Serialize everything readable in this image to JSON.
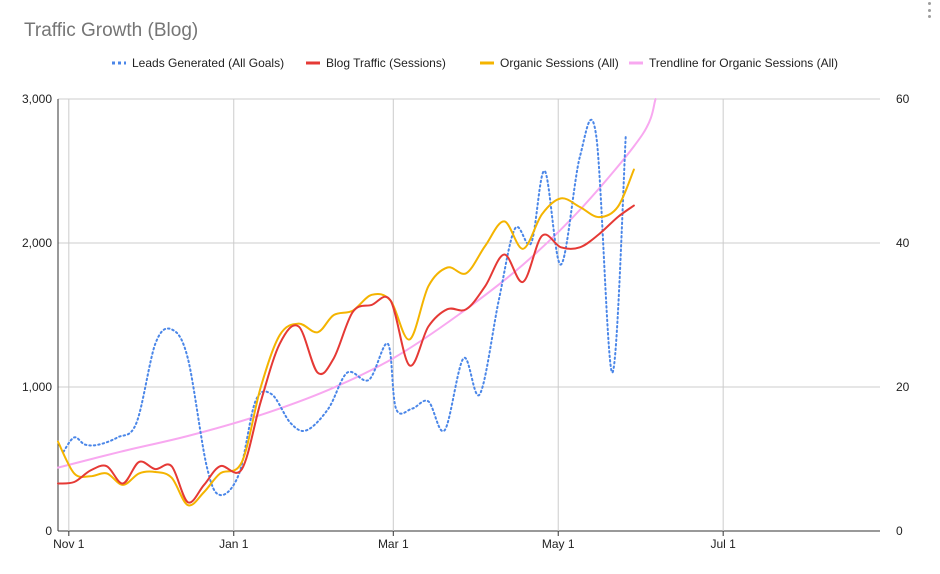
{
  "header": {
    "title": "Traffic Growth (Blog)"
  },
  "menu": {
    "icon": "more-vert-icon"
  },
  "chart_data": {
    "type": "line",
    "title": "Traffic Growth (Blog)",
    "x_ticks": [
      "Nov 1",
      "Jan 1",
      "Mar 1",
      "May 1",
      "Jul 1"
    ],
    "y_ticks": [
      "0",
      "1,000",
      "2,000",
      "3,000"
    ],
    "y2_ticks": [
      "0",
      "20",
      "40",
      "60"
    ],
    "ylim": [
      0,
      3000
    ],
    "y2lim": [
      0,
      60
    ],
    "xlim": [
      "2020-10-28",
      "2021-08-28"
    ],
    "grid": true,
    "legend_position": "top",
    "series": [
      {
        "name": "Leads Generated (All Goals)",
        "axis": "right",
        "style": "dotted",
        "color": "#4a86e8",
        "x": [
          "2020-10-30",
          "2020-11-03",
          "2020-11-07",
          "2020-11-12",
          "2020-11-19",
          "2020-11-26",
          "2020-12-03",
          "2020-12-09",
          "2020-12-15",
          "2020-12-22",
          "2020-12-27",
          "2021-01-03",
          "2021-01-09",
          "2021-01-15",
          "2021-01-22",
          "2021-01-28",
          "2021-02-05",
          "2021-02-12",
          "2021-02-20",
          "2021-02-27",
          "2021-03-02",
          "2021-03-08",
          "2021-03-14",
          "2021-03-20",
          "2021-03-27",
          "2021-04-02",
          "2021-04-09",
          "2021-04-15",
          "2021-04-21",
          "2021-04-26",
          "2021-05-02",
          "2021-05-09",
          "2021-05-15",
          "2021-05-21",
          "2021-05-26"
        ],
        "values": [
          11,
          13,
          12,
          12,
          13,
          15,
          26,
          28,
          24,
          9,
          5,
          8,
          18,
          19,
          15,
          14,
          17,
          22,
          21,
          26,
          17,
          17,
          18,
          14,
          24,
          19,
          32,
          42,
          40,
          50,
          37,
          52,
          55,
          22,
          55
        ]
      },
      {
        "name": "Blog Traffic (Sessions)",
        "axis": "left",
        "style": "solid",
        "color": "#e53935",
        "x": [
          "2020-10-28",
          "2020-11-03",
          "2020-11-09",
          "2020-11-15",
          "2020-11-21",
          "2020-11-27",
          "2020-12-03",
          "2020-12-09",
          "2020-12-15",
          "2020-12-21",
          "2020-12-27",
          "2021-01-04",
          "2021-01-11",
          "2021-01-18",
          "2021-01-25",
          "2021-02-01",
          "2021-02-07",
          "2021-02-14",
          "2021-02-21",
          "2021-02-28",
          "2021-03-07",
          "2021-03-14",
          "2021-03-21",
          "2021-03-28",
          "2021-04-04",
          "2021-04-11",
          "2021-04-18",
          "2021-04-25",
          "2021-05-02",
          "2021-05-09",
          "2021-05-16",
          "2021-05-23",
          "2021-05-29"
        ],
        "values": [
          330,
          340,
          420,
          450,
          330,
          480,
          430,
          450,
          200,
          320,
          450,
          430,
          900,
          1300,
          1420,
          1100,
          1200,
          1520,
          1570,
          1600,
          1150,
          1420,
          1540,
          1540,
          1700,
          1920,
          1730,
          2050,
          1970,
          1970,
          2060,
          2180,
          2260
        ]
      },
      {
        "name": "Organic Sessions (All)",
        "axis": "left",
        "style": "solid",
        "color": "#f4b400",
        "x": [
          "2020-10-28",
          "2020-11-03",
          "2020-11-09",
          "2020-11-15",
          "2020-11-21",
          "2020-11-27",
          "2020-12-03",
          "2020-12-09",
          "2020-12-15",
          "2020-12-21",
          "2020-12-27",
          "2021-01-04",
          "2021-01-11",
          "2021-01-18",
          "2021-01-25",
          "2021-02-01",
          "2021-02-07",
          "2021-02-14",
          "2021-02-21",
          "2021-02-28",
          "2021-03-07",
          "2021-03-14",
          "2021-03-21",
          "2021-03-28",
          "2021-04-04",
          "2021-04-11",
          "2021-04-18",
          "2021-04-25",
          "2021-05-02",
          "2021-05-09",
          "2021-05-16",
          "2021-05-23",
          "2021-05-29"
        ],
        "values": [
          620,
          400,
          380,
          400,
          320,
          400,
          410,
          370,
          180,
          270,
          400,
          480,
          1000,
          1360,
          1440,
          1380,
          1500,
          1530,
          1640,
          1600,
          1330,
          1700,
          1830,
          1790,
          1980,
          2150,
          1960,
          2200,
          2310,
          2250,
          2180,
          2250,
          2510
        ]
      },
      {
        "name": "Trendline for Organic Sessions (All)",
        "axis": "left",
        "style": "solid",
        "color": "#f8a8f0",
        "x": [
          "2020-10-28",
          "2020-11-20",
          "2020-12-15",
          "2021-01-10",
          "2021-02-05",
          "2021-03-01",
          "2021-03-25",
          "2021-04-18",
          "2021-05-10",
          "2021-06-01",
          "2021-06-06"
        ],
        "values": [
          440,
          550,
          660,
          800,
          980,
          1200,
          1500,
          1850,
          2250,
          2750,
          3000
        ]
      }
    ]
  }
}
